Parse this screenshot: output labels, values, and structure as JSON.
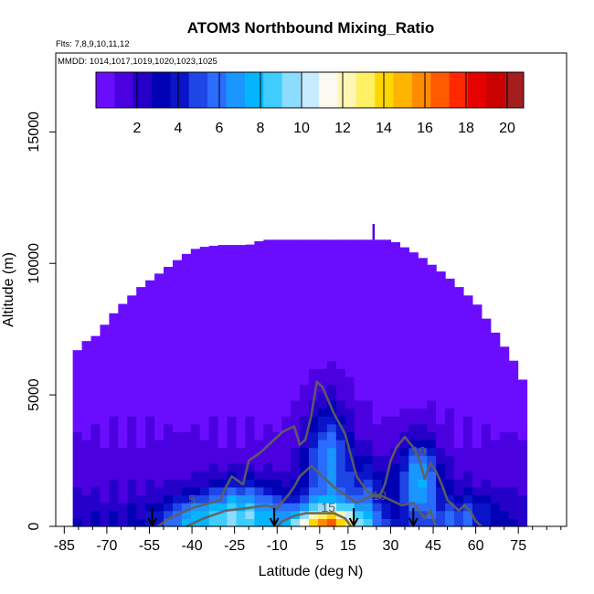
{
  "chart_data": {
    "type": "heatmap",
    "title": "ATOM3 Northbound Mixing_Ratio",
    "subtitle_flights": "Flts: 7,8,9,10,11,12",
    "subtitle_dates": "MMDD: 1014,1017,1019,1020,1023,1025",
    "xlabel": "Latitude (deg N)",
    "ylabel": "Altitude (m)",
    "xlim": [
      -88,
      92
    ],
    "ylim": [
      0,
      18000
    ],
    "x_ticks": [
      -85,
      -70,
      -55,
      -40,
      -25,
      -10,
      5,
      15,
      30,
      45,
      60,
      75
    ],
    "y_ticks": [
      0,
      5000,
      10000,
      15000
    ],
    "colorbar": {
      "min": 0,
      "max": 20.8,
      "tick_values": [
        2,
        4,
        6,
        8,
        10,
        12,
        14,
        16,
        18,
        20
      ],
      "colors": [
        "#6a0dff",
        "#4b00e0",
        "#2400c8",
        "#0000b4",
        "#0a14c8",
        "#1e46e6",
        "#2a6cff",
        "#1996ff",
        "#05b4ff",
        "#40ccff",
        "#8cdcff",
        "#c8ecff",
        "#fafaf0",
        "#fff5b4",
        "#fff064",
        "#ffd700",
        "#ffb400",
        "#ff8c00",
        "#ff5a00",
        "#ff2800",
        "#e60000",
        "#c80000",
        "#a51e1e"
      ]
    },
    "envelope_top": [
      {
        "lat": -82,
        "alt": 6500
      },
      {
        "lat": -78,
        "alt": 7000
      },
      {
        "lat": -73,
        "alt": 7300
      },
      {
        "lat": -70,
        "alt": 7800
      },
      {
        "lat": -66,
        "alt": 8300
      },
      {
        "lat": -62,
        "alt": 8700
      },
      {
        "lat": -58,
        "alt": 9100
      },
      {
        "lat": -53,
        "alt": 9500
      },
      {
        "lat": -48,
        "alt": 9900
      },
      {
        "lat": -43,
        "alt": 10300
      },
      {
        "lat": -38,
        "alt": 10600
      },
      {
        "lat": -30,
        "alt": 10700
      },
      {
        "lat": -20,
        "alt": 10700
      },
      {
        "lat": -15,
        "alt": 10900
      },
      {
        "lat": 0,
        "alt": 10900
      },
      {
        "lat": 15,
        "alt": 10900
      },
      {
        "lat": 30,
        "alt": 10900
      },
      {
        "lat": 35,
        "alt": 10600
      },
      {
        "lat": 40,
        "alt": 10300
      },
      {
        "lat": 45,
        "alt": 9900
      },
      {
        "lat": 50,
        "alt": 9500
      },
      {
        "lat": 55,
        "alt": 9000
      },
      {
        "lat": 60,
        "alt": 8500
      },
      {
        "lat": 63,
        "alt": 8000
      },
      {
        "lat": 66,
        "alt": 7500
      },
      {
        "lat": 69,
        "alt": 7000
      },
      {
        "lat": 72,
        "alt": 6500
      },
      {
        "lat": 75,
        "alt": 6000
      },
      {
        "lat": 78,
        "alt": 5100
      }
    ],
    "plumes": [
      {
        "lat": 8,
        "alt": 0,
        "sx": 13,
        "sy": 800,
        "amp": 12
      },
      {
        "lat": -22,
        "alt": 500,
        "sx": 14,
        "sy": 1200,
        "amp": 6
      },
      {
        "lat": 8,
        "alt": 2500,
        "sx": 8,
        "sy": 2200,
        "amp": 5.5
      },
      {
        "lat": 40,
        "alt": 1800,
        "sx": 7,
        "sy": 1500,
        "amp": 6
      },
      {
        "lat": -40,
        "alt": 300,
        "sx": 12,
        "sy": 800,
        "amp": 4
      },
      {
        "lat": 55,
        "alt": 400,
        "sx": 10,
        "sy": 900,
        "amp": 3
      },
      {
        "lat": 22,
        "alt": 1200,
        "sx": 6,
        "sy": 1500,
        "amp": 3
      }
    ],
    "contour_lines": [
      {
        "level": "5",
        "points": [
          [
            -52,
            0
          ],
          [
            -48,
            300
          ],
          [
            -40,
            700
          ],
          [
            -30,
            1000
          ],
          [
            -28,
            1500
          ],
          [
            -26,
            1900
          ],
          [
            -22,
            1600
          ],
          [
            -20,
            2500
          ],
          [
            -16,
            2800
          ],
          [
            -12,
            3200
          ],
          [
            -8,
            3600
          ],
          [
            -4,
            3800
          ],
          [
            -2,
            3100
          ],
          [
            0,
            3300
          ],
          [
            2,
            4200
          ],
          [
            4,
            5500
          ],
          [
            6,
            5300
          ],
          [
            8,
            4800
          ],
          [
            10,
            4300
          ],
          [
            12,
            3900
          ],
          [
            14,
            3500
          ],
          [
            16,
            2700
          ],
          [
            18,
            1900
          ],
          [
            22,
            1300
          ],
          [
            26,
            1100
          ],
          [
            28,
            1600
          ],
          [
            30,
            2500
          ],
          [
            32,
            3000
          ],
          [
            35,
            3400
          ],
          [
            38,
            3000
          ],
          [
            40,
            2600
          ],
          [
            42,
            1800
          ],
          [
            44,
            2400
          ],
          [
            46,
            2100
          ],
          [
            48,
            1600
          ],
          [
            50,
            1000
          ],
          [
            52,
            800
          ],
          [
            54,
            600
          ],
          [
            56,
            800
          ],
          [
            58,
            600
          ],
          [
            60,
            200
          ],
          [
            62,
            0
          ]
        ]
      },
      {
        "level": "10",
        "points": [
          [
            -42,
            0
          ],
          [
            -36,
            300
          ],
          [
            -28,
            600
          ],
          [
            -20,
            700
          ],
          [
            -14,
            800
          ],
          [
            -10,
            700
          ],
          [
            -6,
            1200
          ],
          [
            -4,
            1500
          ],
          [
            -2,
            1900
          ],
          [
            2,
            2300
          ],
          [
            6,
            1900
          ],
          [
            10,
            1500
          ],
          [
            14,
            1200
          ],
          [
            18,
            900
          ],
          [
            22,
            1100
          ],
          [
            26,
            1200
          ],
          [
            30,
            1000
          ],
          [
            34,
            800
          ],
          [
            38,
            900
          ],
          [
            40,
            600
          ],
          [
            42,
            300
          ],
          [
            44,
            600
          ],
          [
            46,
            0
          ]
        ]
      },
      {
        "level": "15",
        "points": [
          [
            -10,
            0
          ],
          [
            -8,
            200
          ],
          [
            -4,
            400
          ],
          [
            0,
            500
          ],
          [
            6,
            500
          ],
          [
            10,
            500
          ],
          [
            14,
            300
          ],
          [
            16,
            0
          ]
        ]
      }
    ],
    "contour_labels": [
      {
        "text": "5",
        "lat": -40,
        "alt": 850
      },
      {
        "text": "10",
        "lat": 26,
        "alt": 1000
      },
      {
        "text": "15",
        "lat": 8,
        "alt": 550
      },
      {
        "text": "10",
        "lat": 40,
        "alt": 2700
      }
    ],
    "arrows": [
      -54,
      -11,
      17,
      38
    ],
    "spike_marker": {
      "lat": 24,
      "alt_from": 10900,
      "alt_to": 11500
    }
  }
}
